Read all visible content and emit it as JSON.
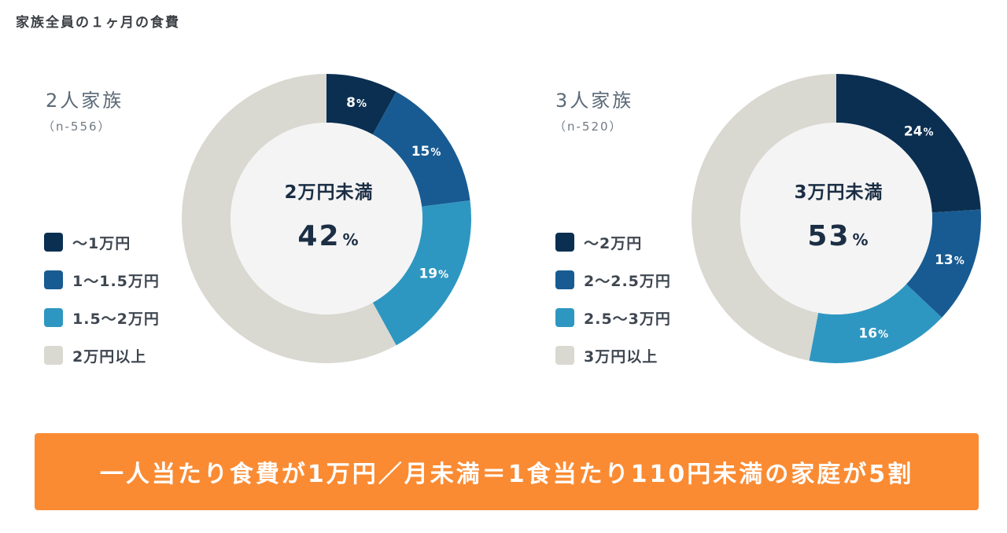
{
  "page_title": "家族全員の１ヶ月の食費",
  "colors": {
    "segment_1": "#0b2f51",
    "segment_2": "#185b92",
    "segment_3": "#2e97c1",
    "segment_4": "#d9d8d1",
    "center_fill": "#f4f4f4",
    "banner": "#fa8b33"
  },
  "chart_data": [
    {
      "type": "pie",
      "variant": "donut",
      "title": "2人家族",
      "subtitle": "（n-556）",
      "center_label": "2万円未満",
      "center_value": "42",
      "center_unit": "%",
      "categories": [
        "～1万円",
        "1～1.5万円",
        "1.5～2万円",
        "2万円以上"
      ],
      "values": [
        8,
        15,
        19,
        58
      ],
      "data_labels": [
        "8",
        "15",
        "19",
        ""
      ],
      "label_unit": "%",
      "legend": "left"
    },
    {
      "type": "pie",
      "variant": "donut",
      "title": "3人家族",
      "subtitle": "（n-520）",
      "center_label": "3万円未満",
      "center_value": "53",
      "center_unit": "%",
      "categories": [
        "～2万円",
        "2～2.5万円",
        "2.5～3万円",
        "3万円以上"
      ],
      "values": [
        24,
        13,
        16,
        47
      ],
      "data_labels": [
        "24",
        "13",
        "16",
        ""
      ],
      "label_unit": "%",
      "legend": "left"
    }
  ],
  "banner_text": "一人当たり食費が1万円／月未満＝1食当たり110円未満の家庭が5割"
}
